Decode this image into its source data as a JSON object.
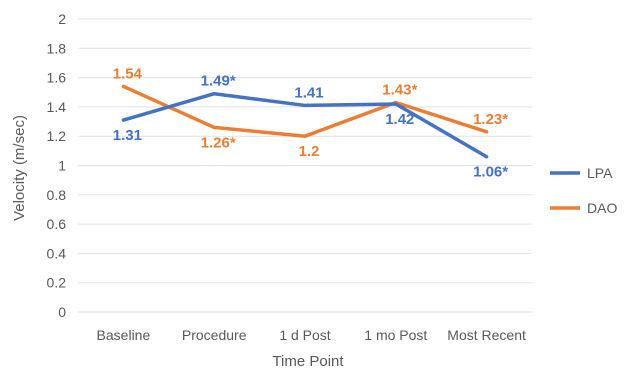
{
  "chart_data": {
    "type": "line",
    "title": "",
    "xlabel": "Time Point",
    "ylabel": "Velocity  (m/sec)",
    "categories": [
      "Baseline",
      "Procedure",
      "1 d Post",
      "1 mo Post",
      "Most Recent"
    ],
    "ylim": [
      0,
      2
    ],
    "yticks": [
      "0",
      "0.2",
      "0.4",
      "0.6",
      "0.8",
      "1",
      "1.2",
      "1.4",
      "1.6",
      "1.8",
      "2"
    ],
    "grid": true,
    "legend_position": "right",
    "series": [
      {
        "name": "LPA",
        "color": "#4472C4",
        "values": [
          1.31,
          1.49,
          1.41,
          1.42,
          1.06
        ],
        "labels": [
          "1.31",
          "1.49*",
          "1.41",
          "1.42",
          "1.06*"
        ]
      },
      {
        "name": "DAO",
        "color": "#ED7D31",
        "values": [
          1.54,
          1.26,
          1.2,
          1.43,
          1.23
        ],
        "labels": [
          "1.54",
          "1.26*",
          "1.2",
          "1.43*",
          "1.23*"
        ]
      }
    ]
  }
}
